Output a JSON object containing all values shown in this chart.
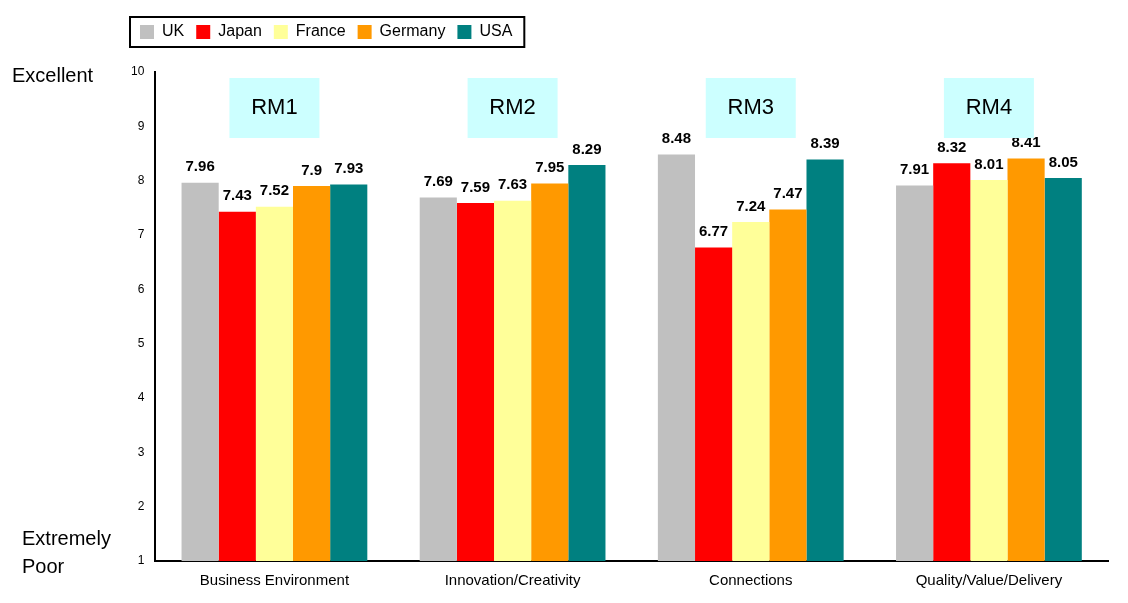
{
  "chart_data": {
    "type": "bar",
    "categories": [
      "Business Environment",
      "Innovation/Creativity",
      "Connections",
      "Quality/Value/Delivery"
    ],
    "series": [
      {
        "name": "UK",
        "color": "#c0c0c0",
        "values": [
          7.96,
          7.69,
          8.48,
          7.91
        ]
      },
      {
        "name": "Japan",
        "color": "#ff0000",
        "values": [
          7.43,
          7.59,
          6.77,
          8.32
        ]
      },
      {
        "name": "France",
        "color": "#ffff99",
        "values": [
          7.52,
          7.63,
          7.24,
          8.01
        ]
      },
      {
        "name": "Germany",
        "color": "#ff9900",
        "values": [
          7.9,
          7.95,
          7.47,
          8.41
        ]
      },
      {
        "name": "USA",
        "color": "#008080",
        "values": [
          7.93,
          8.29,
          8.39,
          8.05
        ]
      }
    ],
    "ylim": [
      1,
      10
    ],
    "yticks": [
      1,
      2,
      3,
      4,
      5,
      6,
      7,
      8,
      9,
      10
    ],
    "grid": false,
    "legend": "top left",
    "data_labels": true,
    "annotations": [
      "Excellent",
      "Extremely Poor",
      "RM1",
      "RM2",
      "RM3",
      "RM4"
    ]
  }
}
